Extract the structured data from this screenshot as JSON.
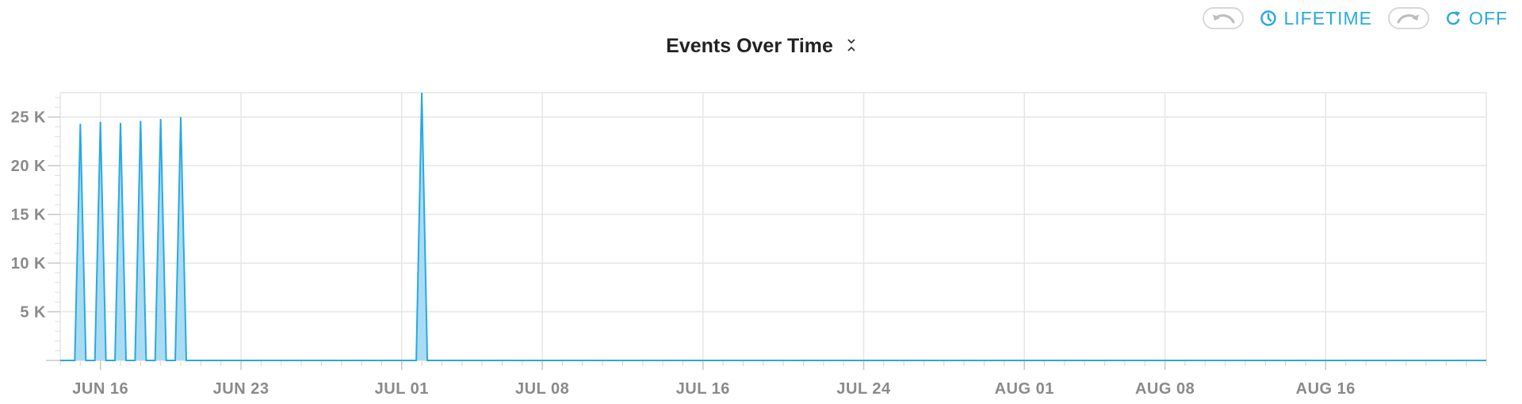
{
  "toolbar": {
    "undo_icon": "undo-arrow-icon",
    "time_icon": "clock-icon",
    "time_label": "LIFETIME",
    "redo_icon": "redo-arrow-icon",
    "refresh_icon": "refresh-icon",
    "refresh_label": "OFF"
  },
  "title": "Events Over Time",
  "title_icon": "chevron-collapse-icon",
  "colors": {
    "accent": "#29a9e0",
    "fill": "#a9dcf3",
    "grid": "#e6e6e6",
    "tick": "#8a8a8a"
  },
  "chart_data": {
    "type": "area",
    "title": "Events Over Time",
    "xlabel": "",
    "ylabel": "",
    "x_start": "2025-06-14",
    "x_end": "2025-08-24",
    "xlim": [
      "2025-06-14",
      "2025-08-24"
    ],
    "ylim": [
      0,
      27500
    ],
    "grid": true,
    "x_tick_labels": [
      "JUN 16",
      "JUN 23",
      "JUL 01",
      "JUL 08",
      "JUL 16",
      "JUL 24",
      "AUG 01",
      "AUG 08",
      "AUG 16"
    ],
    "x_tick_dates": [
      "2025-06-16",
      "2025-06-23",
      "2025-07-01",
      "2025-07-08",
      "2025-07-16",
      "2025-07-24",
      "2025-08-01",
      "2025-08-08",
      "2025-08-16"
    ],
    "y_tick_labels": [
      "5 K",
      "10 K",
      "15 K",
      "20 K",
      "25 K"
    ],
    "y_tick_values": [
      5000,
      10000,
      15000,
      20000,
      25000
    ],
    "series": [
      {
        "points": [
          [
            "2025-06-14",
            0
          ],
          [
            "2025-06-15",
            24300
          ],
          [
            "2025-06-16",
            24500
          ],
          [
            "2025-06-17",
            24400
          ],
          [
            "2025-06-18",
            24600
          ],
          [
            "2025-06-19",
            24800
          ],
          [
            "2025-06-20",
            25000
          ],
          [
            "2025-07-02",
            27500
          ]
        ]
      }
    ]
  }
}
